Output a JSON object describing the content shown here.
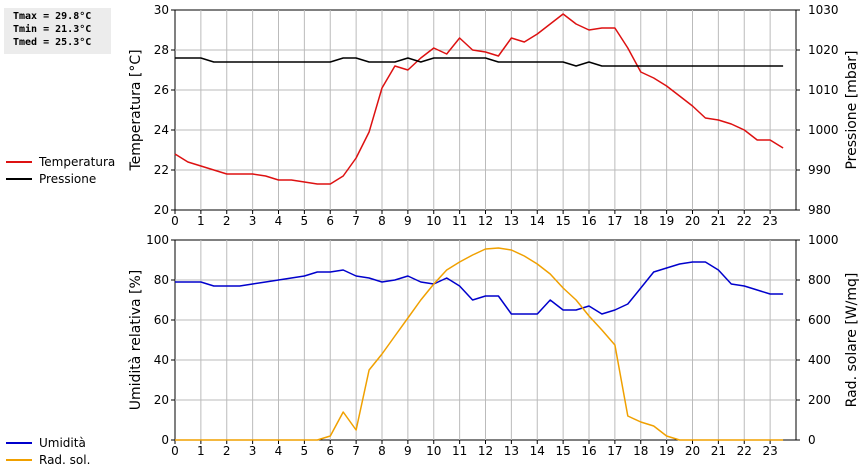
{
  "stats": {
    "tmax": "Tmax = 29.8°C",
    "tmin": "Tmin = 21.3°C",
    "tmed": "Tmed = 25.3°C"
  },
  "colors": {
    "temperature": "#dd1111",
    "pressure": "#000000",
    "humidity": "#0000cc",
    "radiation": "#f0a000",
    "grid": "#bbbbbb"
  },
  "chart_data": [
    {
      "type": "line",
      "panel": "top",
      "x": [
        0,
        0.5,
        1,
        1.5,
        2,
        2.5,
        3,
        3.5,
        4,
        4.5,
        5,
        5.5,
        6,
        6.5,
        7,
        7.5,
        8,
        8.5,
        9,
        9.5,
        10,
        10.5,
        11,
        11.5,
        12,
        12.5,
        13,
        13.5,
        14,
        14.5,
        15,
        15.5,
        16,
        16.5,
        17,
        17.5,
        18,
        18.5,
        19,
        19.5,
        20,
        20.5,
        21,
        21.5,
        22,
        22.5,
        23,
        23.5
      ],
      "xticks": [
        "0",
        "1",
        "2",
        "3",
        "4",
        "5",
        "6",
        "7",
        "8",
        "9",
        "10",
        "11",
        "12",
        "13",
        "14",
        "15",
        "16",
        "17",
        "18",
        "19",
        "20",
        "21",
        "22",
        "23"
      ],
      "xlim": [
        0,
        24
      ],
      "ylabel_left": "Temperatura [°C]",
      "ylim_left": [
        20,
        30
      ],
      "yticks_left": [
        "20",
        "22",
        "24",
        "26",
        "28",
        "30"
      ],
      "ylabel_right": "Pressione [mbar]",
      "ylim_right": [
        980,
        1030
      ],
      "yticks_right": [
        "980",
        "990",
        "1000",
        "1010",
        "1020",
        "1030"
      ],
      "grid": true,
      "legend_position": "left",
      "series": [
        {
          "name": "Temperatura",
          "axis": "left",
          "color": "#dd1111",
          "values": [
            22.8,
            22.4,
            22.2,
            22.0,
            21.8,
            21.8,
            21.8,
            21.7,
            21.5,
            21.5,
            21.4,
            21.3,
            21.3,
            21.7,
            22.6,
            23.9,
            26.1,
            27.2,
            27.0,
            27.6,
            28.1,
            27.8,
            28.6,
            28.0,
            27.9,
            27.7,
            28.6,
            28.4,
            28.8,
            29.3,
            29.8,
            29.3,
            29.0,
            29.1,
            29.1,
            28.1,
            26.9,
            26.6,
            26.2,
            25.7,
            25.2,
            24.6,
            24.5,
            24.3,
            24.0,
            23.5,
            23.5,
            23.1
          ]
        },
        {
          "name": "Pressione",
          "axis": "right",
          "color": "#000000",
          "values": [
            1018,
            1018,
            1018,
            1017,
            1017,
            1017,
            1017,
            1017,
            1017,
            1017,
            1017,
            1017,
            1017,
            1018,
            1018,
            1017,
            1017,
            1017,
            1018,
            1017,
            1018,
            1018,
            1018,
            1018,
            1018,
            1017,
            1017,
            1017,
            1017,
            1017,
            1017,
            1016,
            1017,
            1016,
            1016,
            1016,
            1016,
            1016,
            1016,
            1016,
            1016,
            1016,
            1016,
            1016,
            1016,
            1016,
            1016,
            1016
          ]
        }
      ]
    },
    {
      "type": "line",
      "panel": "bottom",
      "x": [
        0,
        0.5,
        1,
        1.5,
        2,
        2.5,
        3,
        3.5,
        4,
        4.5,
        5,
        5.5,
        6,
        6.5,
        7,
        7.5,
        8,
        8.5,
        9,
        9.5,
        10,
        10.5,
        11,
        11.5,
        12,
        12.5,
        13,
        13.5,
        14,
        14.5,
        15,
        15.5,
        16,
        16.5,
        17,
        17.5,
        18,
        18.5,
        19,
        19.5,
        20,
        20.5,
        21,
        21.5,
        22,
        22.5,
        23,
        23.5
      ],
      "xticks": [
        "0",
        "1",
        "2",
        "3",
        "4",
        "5",
        "6",
        "7",
        "8",
        "9",
        "10",
        "11",
        "12",
        "13",
        "14",
        "15",
        "16",
        "17",
        "18",
        "19",
        "20",
        "21",
        "22",
        "23"
      ],
      "xlim": [
        0,
        24
      ],
      "ylabel_left": "Umidità relativa [%]",
      "ylim_left": [
        0,
        100
      ],
      "yticks_left": [
        "0",
        "20",
        "40",
        "60",
        "80",
        "100"
      ],
      "ylabel_right": "Rad. solare [W/mq]",
      "ylim_right": [
        0,
        1000
      ],
      "yticks_right": [
        "0",
        "200",
        "400",
        "600",
        "800",
        "1000"
      ],
      "grid": true,
      "legend_position": "left",
      "series": [
        {
          "name": "Umidità",
          "axis": "left",
          "color": "#0000cc",
          "values": [
            79,
            79,
            79,
            77,
            77,
            77,
            78,
            79,
            80,
            81,
            82,
            84,
            84,
            85,
            82,
            81,
            79,
            80,
            82,
            79,
            78,
            81,
            77,
            70,
            72,
            72,
            63,
            63,
            63,
            70,
            65,
            65,
            67,
            63,
            65,
            68,
            76,
            84,
            86,
            88,
            89,
            89,
            85,
            78,
            77,
            75,
            73,
            73
          ]
        },
        {
          "name": "Rad. sol.",
          "axis": "right",
          "color": "#f0a000",
          "values": [
            0,
            0,
            0,
            0,
            0,
            0,
            0,
            0,
            0,
            0,
            0,
            0,
            20,
            140,
            50,
            350,
            430,
            520,
            610,
            700,
            780,
            850,
            890,
            925,
            955,
            960,
            950,
            920,
            880,
            830,
            760,
            700,
            620,
            550,
            475,
            120,
            90,
            70,
            20,
            0,
            0,
            0,
            0,
            0,
            0,
            0,
            0,
            0
          ]
        }
      ]
    }
  ]
}
